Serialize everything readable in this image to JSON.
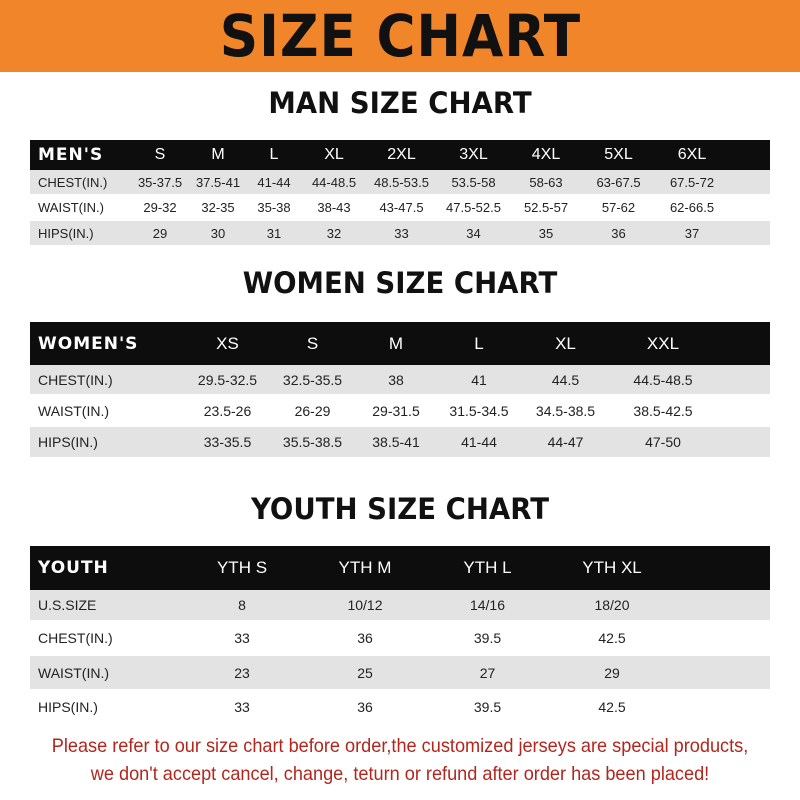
{
  "title": "SIZE CHART",
  "men": {
    "heading": "MAN SIZE CHART",
    "header": [
      "MEN'S",
      "S",
      "M",
      "L",
      "XL",
      "2XL",
      "3XL",
      "4XL",
      "5XL",
      "6XL"
    ],
    "rows": [
      [
        "CHEST(IN.)",
        "35-37.5",
        "37.5-41",
        "41-44",
        "44-48.5",
        "48.5-53.5",
        "53.5-58",
        "58-63",
        "63-67.5",
        "67.5-72"
      ],
      [
        "WAIST(IN.)",
        "29-32",
        "32-35",
        "35-38",
        "38-43",
        "43-47.5",
        "47.5-52.5",
        "52.5-57",
        "57-62",
        "62-66.5"
      ],
      [
        "HIPS(IN.)",
        "29",
        "30",
        "31",
        "32",
        "33",
        "34",
        "35",
        "36",
        "37"
      ]
    ]
  },
  "women": {
    "heading": "WOMEN SIZE CHART",
    "header": [
      "WOMEN'S",
      "XS",
      "S",
      "M",
      "L",
      "XL",
      "XXL"
    ],
    "rows": [
      [
        "CHEST(IN.)",
        "29.5-32.5",
        "32.5-35.5",
        "38",
        "41",
        "44.5",
        "44.5-48.5"
      ],
      [
        "WAIST(IN.)",
        "23.5-26",
        "26-29",
        "29-31.5",
        "31.5-34.5",
        "34.5-38.5",
        "38.5-42.5"
      ],
      [
        "HIPS(IN.)",
        "33-35.5",
        "35.5-38.5",
        "38.5-41",
        "41-44",
        "44-47",
        "47-50"
      ]
    ]
  },
  "youth": {
    "heading": "YOUTH SIZE CHART",
    "header": [
      "YOUTH",
      "YTH S",
      "YTH M",
      "YTH L",
      "YTH XL"
    ],
    "rows": [
      [
        "U.S.SIZE",
        "8",
        "10/12",
        "14/16",
        "18/20"
      ],
      [
        "CHEST(IN.)",
        "33",
        "36",
        "39.5",
        "42.5"
      ],
      [
        "WAIST(IN.)",
        "23",
        "25",
        "27",
        "29"
      ],
      [
        "HIPS(IN.)",
        "33",
        "36",
        "39.5",
        "42.5"
      ]
    ]
  },
  "notice": [
    "Please refer to our size chart before order,the customized jerseys are special products,",
    "we don't accept cancel, change, teturn or refund after order has been placed!"
  ],
  "colors": {
    "banner": "#f0852a",
    "header_row": "#0d0d0d",
    "stripe": "#e3e3e3",
    "notice": "#b3261e"
  }
}
